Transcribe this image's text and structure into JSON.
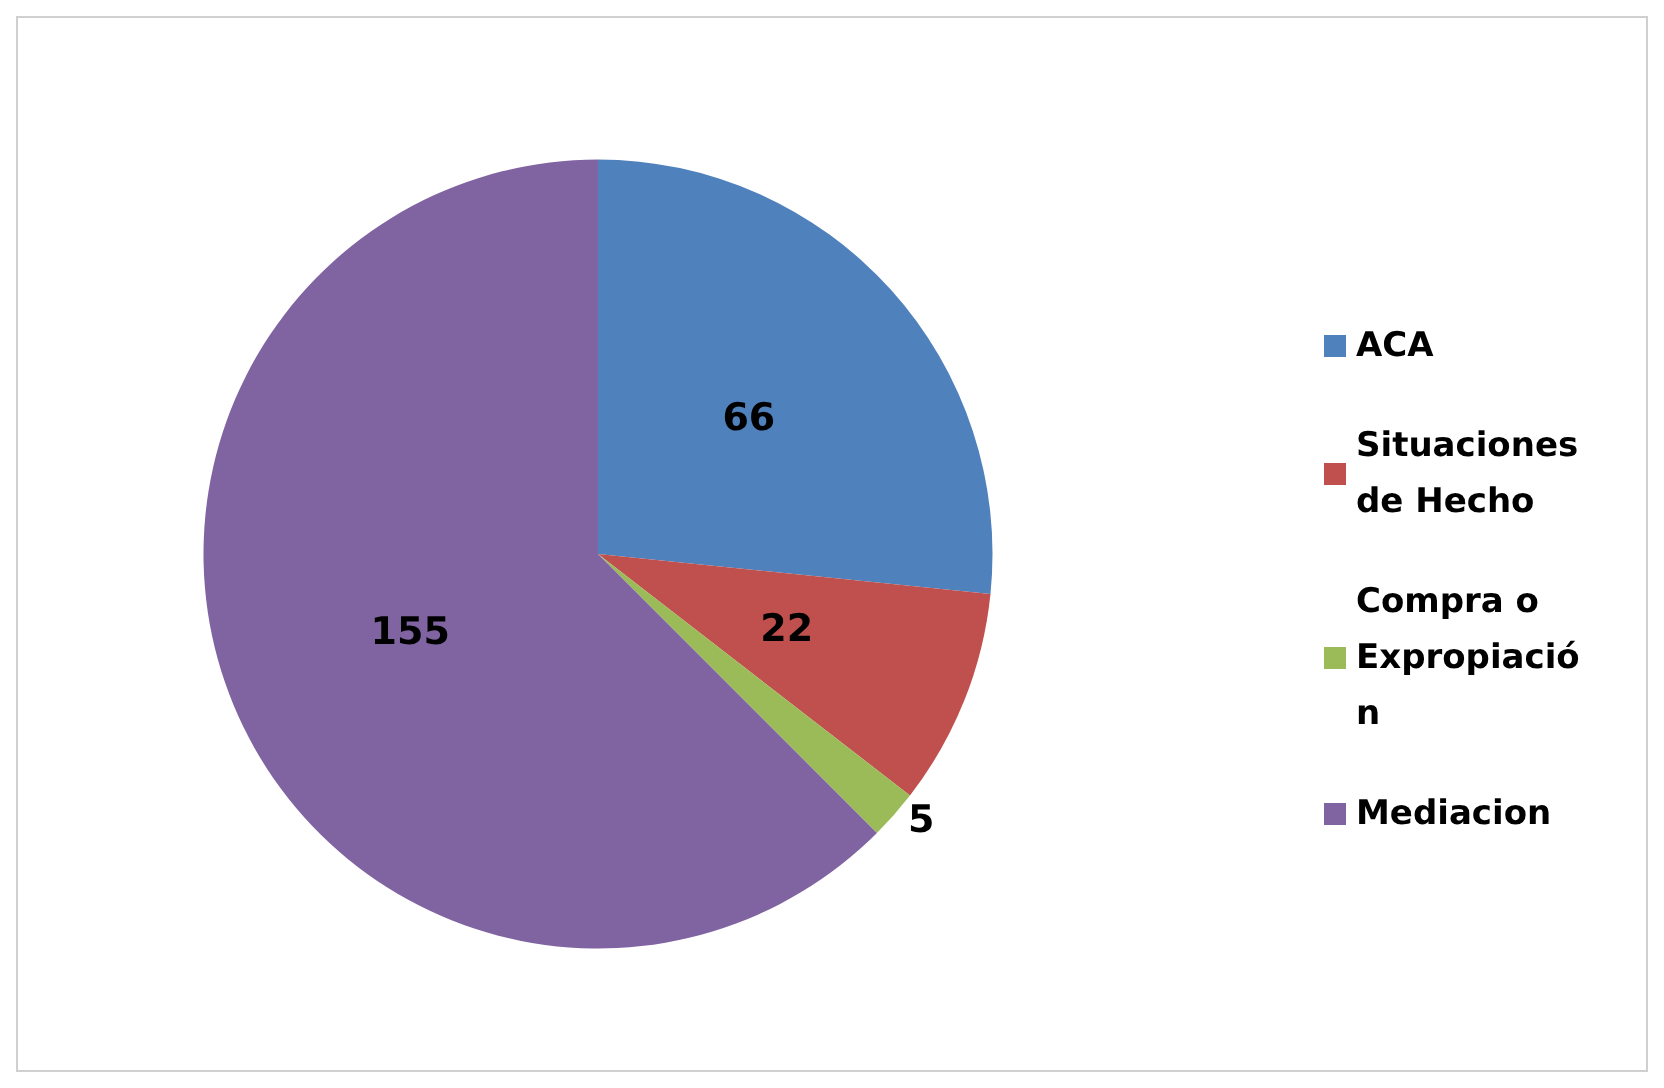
{
  "chart_data": {
    "type": "pie",
    "categories": [
      "ACA",
      "Situaciones de Hecho",
      "Compra o Expropiación",
      "Mediacion"
    ],
    "values": [
      66,
      22,
      5,
      155
    ],
    "colors": [
      "#4f81bd",
      "#c0504d",
      "#9bbb59",
      "#8064a2"
    ],
    "data_labels": true,
    "legend": "right"
  }
}
